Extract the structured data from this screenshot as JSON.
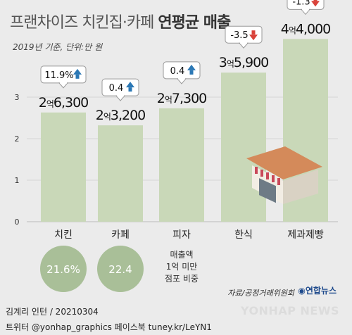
{
  "title_regular": "프랜차이즈 치킨집·카페 ",
  "title_bold": "연평균 매출",
  "subtitle": "2019년 기준, 단위:만 원",
  "chart_data": {
    "type": "bar",
    "categories": [
      "치킨",
      "카페",
      "피자",
      "한식",
      "제과제빵"
    ],
    "values": [
      26300,
      23200,
      27300,
      35900,
      44000
    ],
    "value_labels": [
      {
        "big1": "2",
        "unit": "억",
        "big2": "6,300"
      },
      {
        "big1": "2",
        "unit": "억",
        "big2": "3,200"
      },
      {
        "big1": "2",
        "unit": "억",
        "big2": "7,300"
      },
      {
        "big1": "3",
        "unit": "억",
        "big2": "5,900"
      },
      {
        "big1": "4",
        "unit": "억",
        "big2": "4,000"
      }
    ],
    "changes": [
      {
        "text": "11.9%",
        "dir": "up"
      },
      {
        "text": "0.4",
        "dir": "up"
      },
      {
        "text": "0.4",
        "dir": "up"
      },
      {
        "text": "-3.5",
        "dir": "down"
      },
      {
        "text": "-1.3",
        "dir": "down"
      }
    ],
    "yticks": [
      0,
      1,
      2,
      3
    ],
    "ylim": [
      0,
      4.4
    ],
    "bar_color": "#c9d8b8",
    "up_color": "#2b78b5",
    "down_color": "#d9423a",
    "grid": false
  },
  "circles": {
    "values": [
      "21.6%",
      "22.4"
    ],
    "label_lines": [
      "매출액",
      "1억 미만",
      "점포 비중"
    ],
    "color": "#a9bf98"
  },
  "source": "자료/공정거래위원회",
  "brand": "연합뉴스",
  "footer_line1": "김계리 인턴 / 20210304",
  "footer_line2": "트위터 @yonhap_graphics  페이스북 tuney.kr/LeYN1",
  "watermark": "YONHAP NEWS"
}
